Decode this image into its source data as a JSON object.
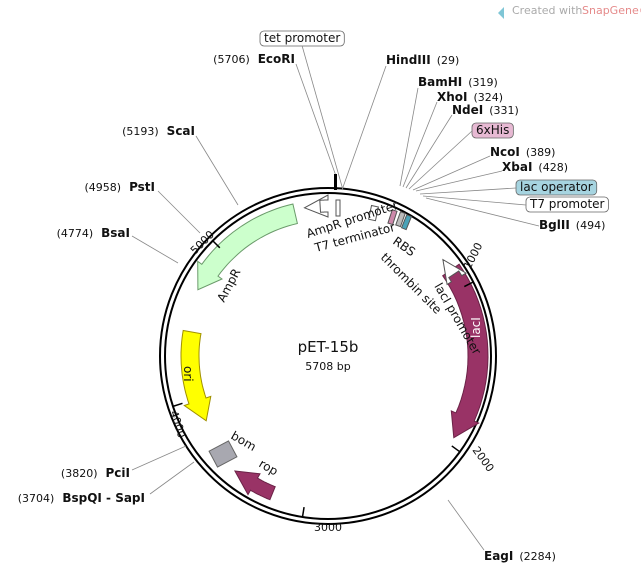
{
  "header": {
    "credit": "Created with",
    "brand": "SnapGene®"
  },
  "plasmid": {
    "name": "pET-15b",
    "size": "5708 bp"
  },
  "sites": [
    {
      "name": "EcoRI",
      "position": "(5706)"
    },
    {
      "name": "HindIII",
      "position": "(29)"
    },
    {
      "name": "BamHI",
      "position": "(319)"
    },
    {
      "name": "XhoI",
      "position": "(324)"
    },
    {
      "name": "NdeI",
      "position": "(331)"
    },
    {
      "name": "NcoI",
      "position": "(389)"
    },
    {
      "name": "XbaI",
      "position": "(428)"
    },
    {
      "name": "BglII",
      "position": "(494)"
    },
    {
      "name": "EagI",
      "position": "(2284)"
    },
    {
      "name": "BspQI - SapI",
      "position": "(3704)"
    },
    {
      "name": "PciI",
      "position": "(3820)"
    },
    {
      "name": "BsaI",
      "position": "(4774)"
    },
    {
      "name": "PstI",
      "position": "(4958)"
    },
    {
      "name": "ScaI",
      "position": "(5193)"
    }
  ],
  "boxed_features": [
    "tet promoter",
    "6xHis",
    "lac operator",
    "T7 promoter"
  ],
  "features": [
    "AmpR promoter",
    "T7 terminator",
    "RBS",
    "thrombin site",
    "lacI promoter",
    "AmpR",
    "ori",
    "lacI",
    "bom",
    "rop"
  ],
  "ticks": [
    "1000",
    "2000",
    "3000",
    "4000",
    "5000"
  ]
}
